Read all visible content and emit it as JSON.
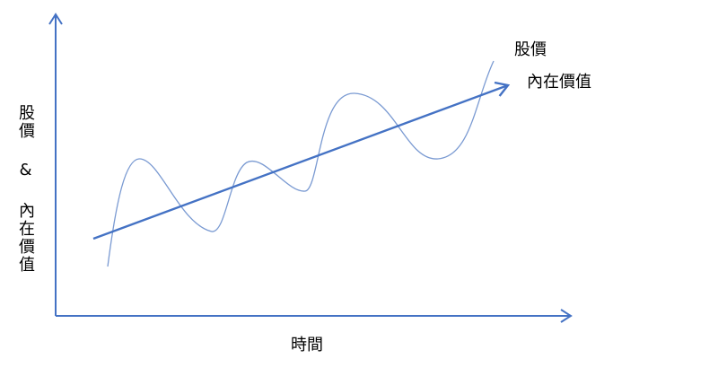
{
  "diagram": {
    "x_axis_label": "時間",
    "y_axis_label": "股價 & 內在價值",
    "curve_label": "股價",
    "trend_label": "內在價值",
    "colors": {
      "axis": "#4472c4",
      "trend": "#4472c4",
      "price_curve": "#7a9ad2",
      "text": "#000000"
    }
  }
}
